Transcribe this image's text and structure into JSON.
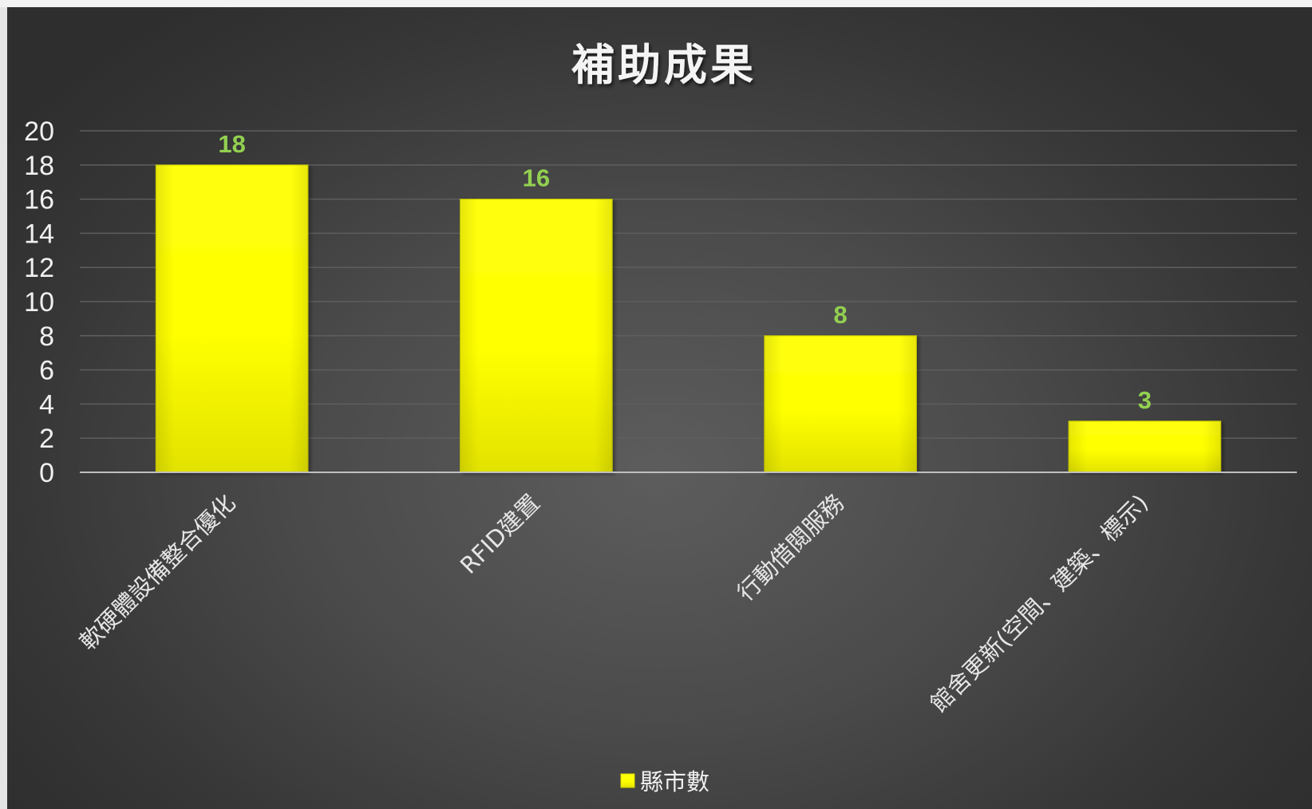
{
  "chart_data": {
    "type": "bar",
    "title": "補助成果",
    "categories": [
      "軟硬體設備整合優化",
      "RFID建置",
      "行動借閱服務",
      "館舍更新(空間、建築、標示)"
    ],
    "series": [
      {
        "name": "縣市數",
        "values": [
          18,
          16,
          8,
          3
        ]
      }
    ],
    "xlabel": "",
    "ylabel": "",
    "ylim": [
      0,
      20
    ],
    "yticks": [
      0,
      2,
      4,
      6,
      8,
      10,
      12,
      14,
      16,
      18,
      20
    ],
    "grid": true,
    "legend": "bottom-center",
    "colors": {
      "bar": "#ffff00",
      "data_label": "#92d050",
      "gridline": "#5e5e5e",
      "axis": "#bfbfbf"
    }
  }
}
